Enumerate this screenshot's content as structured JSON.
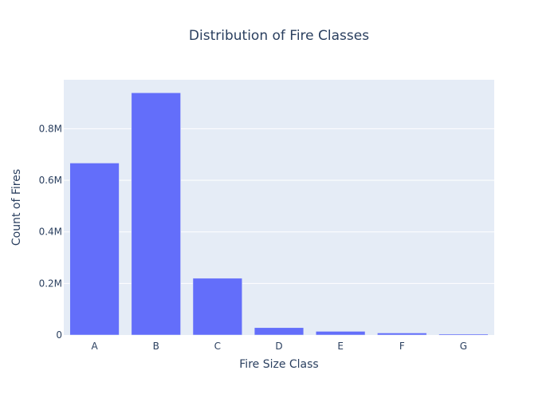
{
  "chart_data": {
    "type": "bar",
    "title": "Distribution of Fire Classes",
    "xlabel": "Fire Size Class",
    "ylabel": "Count of Fires",
    "categories": [
      "A",
      "B",
      "C",
      "D",
      "E",
      "F",
      "G"
    ],
    "values": [
      666919,
      939376,
      220077,
      28427,
      14107,
      7786,
      3773
    ],
    "ylim": [
      0,
      990000
    ],
    "yticks": [
      0,
      200000,
      400000,
      600000,
      800000
    ],
    "ytick_labels": [
      "0",
      "0.2M",
      "0.4M",
      "0.6M",
      "0.8M"
    ],
    "grid": true,
    "legend": "none"
  },
  "colors": {
    "bar": "#636efa",
    "plot_background": "#e5ecf6",
    "grid": "#ffffff",
    "text": "#2a3f5f"
  }
}
